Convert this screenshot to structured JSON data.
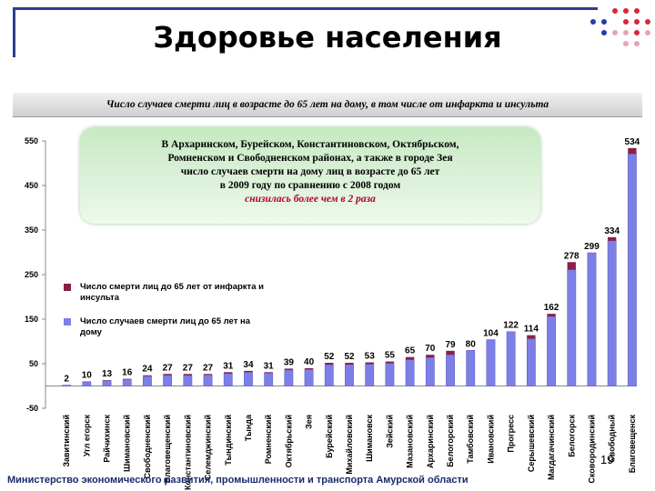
{
  "header": {
    "title": "Здоровье населения",
    "subtitle": "Число случаев смерти лиц в возрасте до 65 лет на дому, в том числе от инфаркта и инсульта"
  },
  "callout": {
    "lines": [
      "В Архаринском, Бурейском, Константиновском, Октябрьском,",
      "Ромненском и Свободненском районах, а также в городе Зея",
      "число случаев смерти на дому лиц в возрасте до 65 лет",
      "в 2009 году по сравнению с 2008 годом"
    ],
    "highlight": "снизилась более чем в 2 раза"
  },
  "footer": {
    "ministry": "Министерство экономического развития, промышленности и транспорта Амурской области",
    "page_number": "19"
  },
  "colors": {
    "deaths_total": "#7b7fe6",
    "infarct_stroke": "#8b1e4a",
    "brand": "#1a2a6c"
  },
  "chart_data": {
    "type": "bar",
    "stacked": true,
    "ylim": [
      -50,
      550
    ],
    "yticks": [
      -50,
      50,
      150,
      250,
      350,
      450,
      550
    ],
    "categories": [
      "Завитинский",
      "Угл егорск",
      "Райчихинск",
      "Шимановский",
      "Свободненский",
      "Благовещенский",
      "Константиновский",
      "Селемджинский",
      "Тындинский",
      "Тында",
      "Ромненский",
      "Октябрьский",
      "Зея",
      "Бурейский",
      "Михайловский",
      "Шимановск",
      "Зейский",
      "Мазановский",
      "Архаринский",
      "Белогорский",
      "Тамбовский",
      "Ивановский",
      "Прогресс",
      "Серышевский",
      "Магдагачинский",
      "Белогорск",
      "Сковородинский",
      "Свободный",
      "Благовещенск"
    ],
    "totals": [
      2,
      10,
      13,
      16,
      24,
      27,
      27,
      27,
      31,
      34,
      31,
      39,
      40,
      52,
      52,
      53,
      55,
      65,
      70,
      79,
      80,
      104,
      122,
      114,
      162,
      278,
      299,
      334,
      534
    ],
    "series": [
      {
        "name": "Число смерти лиц до 65 лет от инфаркта и инсульта",
        "values": [
          0,
          1,
          1,
          1,
          2,
          3,
          3,
          2,
          3,
          3,
          2,
          3,
          3,
          4,
          4,
          4,
          4,
          6,
          6,
          9,
          0,
          0,
          0,
          8,
          6,
          17,
          0,
          8,
          13
        ]
      },
      {
        "name": "Число случаев смерти лиц до 65 лет на дому",
        "values": [
          2,
          9,
          12,
          15,
          22,
          24,
          24,
          25,
          28,
          31,
          29,
          36,
          37,
          48,
          48,
          49,
          51,
          59,
          64,
          70,
          80,
          104,
          122,
          106,
          156,
          261,
          299,
          326,
          521
        ]
      }
    ]
  }
}
